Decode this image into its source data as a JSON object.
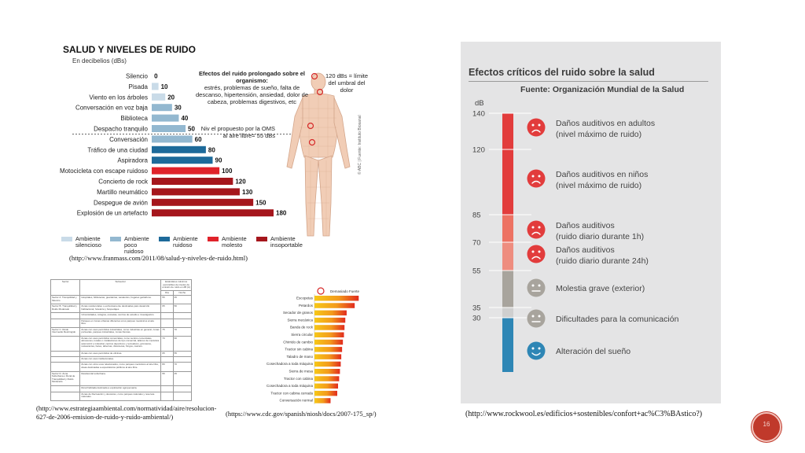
{
  "chart_data": [
    {
      "type": "bar",
      "title": "SALUD Y NIVELES DE RUIDO",
      "subtitle": "En decibelios (dBs)",
      "categories": [
        "Silencio",
        "Pisada",
        "Viento en los árboles",
        "Conversación en voz baja",
        "Biblioteca",
        "Despacho tranquilo",
        "Conversación",
        "Tráfico de una ciudad",
        "Aspiradora",
        "Motocicleta con escape ruidoso",
        "Concierto de rock",
        "Martillo neumático",
        "Despegue de avión",
        "Explosión de un artefacto"
      ],
      "values": [
        0,
        10,
        20,
        30,
        40,
        50,
        60,
        80,
        90,
        100,
        120,
        130,
        150,
        180
      ],
      "group": [
        0,
        0,
        0,
        1,
        1,
        1,
        1,
        2,
        2,
        3,
        4,
        4,
        4,
        4
      ],
      "xlim": [
        0,
        180
      ],
      "legend": [
        {
          "label": "Ambiente silencioso",
          "color": "#c9dbe8"
        },
        {
          "label": "Ambiente poco ruidoso",
          "color": "#93b8d0"
        },
        {
          "label": "Ambiente ruidoso",
          "color": "#1d6a9a"
        },
        {
          "label": "Ambiente molesto",
          "color": "#e0222a"
        },
        {
          "label": "Ambiente insoportable",
          "color": "#a5161c"
        }
      ],
      "legend_placement": "bottom",
      "annotation_title": "Efectos del ruido prolongado sobre el organismo:",
      "annotation_body": "estrés, problemas de sueño, falta de descanso, hipertensión, ansiedad, dolor de cabeza, problemas digestivos, etc",
      "threshold_note": "120 dBs = límite del umbral del dolor",
      "oms_note": "Niv el propuesto por la OMS al aire libre= 55 dBs",
      "credit": "© ABC | Fuente: Instituto Biosanal"
    },
    {
      "type": "bar",
      "title": "Efectos críticos del ruido sobre la salud",
      "source": "Fuente: Organización Mundial de la Salud",
      "ylabel": "dB",
      "ylim": [
        0,
        140
      ],
      "yticks": [
        140,
        120,
        85,
        70,
        55,
        35,
        30
      ],
      "segments": [
        {
          "from": 85,
          "to": 140,
          "color": "#e23c3c"
        },
        {
          "from": 70,
          "to": 85,
          "color": "#ed7263"
        },
        {
          "from": 55,
          "to": 70,
          "color": "#ee8d7f"
        },
        {
          "from": 35,
          "to": 55,
          "color": "#a8a49d"
        },
        {
          "from": 30,
          "to": 35,
          "color": "#cfcfcf"
        },
        {
          "from": 0,
          "to": 30,
          "color": "#2e86b5"
        }
      ],
      "effects": [
        {
          "db": 140,
          "label": [
            "Daños auditivos en adultos",
            "(nivel máximo de ruido)"
          ],
          "face": "sad-red"
        },
        {
          "db": 120,
          "label": [
            "Daños auditivos en niños",
            "(nivel máximo de ruido)"
          ],
          "face": "sad-red"
        },
        {
          "db": 85,
          "label": [
            "Daños auditivos",
            "(ruido diario durante 1h)"
          ],
          "face": "sad-red"
        },
        {
          "db": 70,
          "label": [
            "Daños auditivos",
            "(ruido diario durante 24h)"
          ],
          "face": "sad-red"
        },
        {
          "db": 55,
          "label": [
            "Molestia grave (exterior)"
          ],
          "face": "neutral-grey"
        },
        {
          "db": 35,
          "label": [
            "Dificultades para la comunicación"
          ],
          "face": "neutral-grey"
        },
        {
          "db": 30,
          "label": [
            "Alteración del sueño"
          ],
          "face": "happy-blue"
        }
      ]
    },
    {
      "type": "bar",
      "banner": "Demasiado Fuerte",
      "categories": [
        "Escopetas",
        "Petardos",
        "Secador de granos",
        "Sierra mecánica",
        "Banda de rock",
        "Sierra circular",
        "Chirrido de cambio",
        "Tractor sin cabina",
        "Taladro de mano",
        "Cosechadora a toda máquina",
        "Sierra de mesa",
        "Tractor con cabina",
        "Cosechadora a toda máquina",
        "Tractor con cabina cerrada",
        "Conversación normal"
      ],
      "values": [
        165,
        150,
        120,
        115,
        112,
        110,
        106,
        103,
        100,
        98,
        95,
        92,
        88,
        85,
        60
      ],
      "xlim": [
        0,
        170
      ]
    }
  ],
  "captions": {
    "url1": "(http://www.franmass.com/2011/08/salud-y-niveles-de-ruido.html)",
    "url2": "(http://www.estrategiaambiental.com/normatividad/aire/resolucion-627-de-2006-emision-de-ruido-y-ruido-ambiental/)",
    "url3": "(https://www.cdc.gov/spanish/niosh/docs/2007-175_sp/)",
    "url4": "(http://www.rockwool.es/edificios+sostenibles/confort+ac%C3%BAstico?)"
  },
  "table": {
    "headers": [
      "Sector",
      "Subsector",
      "Estándares máximos permisibles de niveles de emisión de ruido en dB (A)"
    ],
    "subheaders": [
      "Día",
      "Noche"
    ],
    "rows": [
      [
        "Sector A. Tranquilidad y Silencio",
        "Hospitales, bibliotecas, guarderías, sanatorios, hogares geriátricos.",
        "55",
        "45"
      ],
      [
        "Sector B. Tranquilidad y Ruido Moderado",
        "Zonas residenciales o exclusivamente destinadas para desarrollo habitacional, hotelería y hospedajes.",
        "65",
        "50"
      ],
      [
        "",
        "Universidades, colegios, escuelas, centros de estudio e investigación.",
        "",
        ""
      ],
      [
        "",
        "Parques en zonas urbanas diferentes a los parques mecánicos al aire libre.",
        "",
        ""
      ],
      [
        "Sector C. Ruido Intermedio Restringido",
        "Zonas con usos permitidos industriales, como industrias en general, zonas portuarias, parques industriales, zonas francas.",
        "75",
        "70"
      ],
      [
        "",
        "Zonas con usos permitidos comerciales, como centros comerciales, almacenes, locales o instalaciones de tipo comercial, talleres de mecánica automotriz e industrial, centros deportivos y recreativos, gimnasios, restaurantes, bares, tabernas, discotecas, bingos, casinos.",
        "70",
        "60"
      ],
      [
        "",
        "Zonas con usos permitidos de oficinas.",
        "65",
        "55"
      ],
      [
        "",
        "Zonas con usos institucionales.",
        "",
        ""
      ],
      [
        "",
        "Zonas con otros usos relacionados, como parques mecánicos al aire libre, áreas destinadas a espectáculos públicos al aire libre.",
        "80",
        "70"
      ],
      [
        "Sector D. Zona Suburbana o Rural de Tranquilidad y Ruido Moderado",
        "Residencial suburbana.",
        "55",
        "45"
      ],
      [
        "",
        "Rural habitada destinada a explotación agropecuaria.",
        "",
        ""
      ],
      [
        "",
        "Zonas de Recreación y descanso, como parques naturales y reservas naturales.",
        "",
        ""
      ]
    ]
  },
  "badge": {
    "number": "16"
  }
}
